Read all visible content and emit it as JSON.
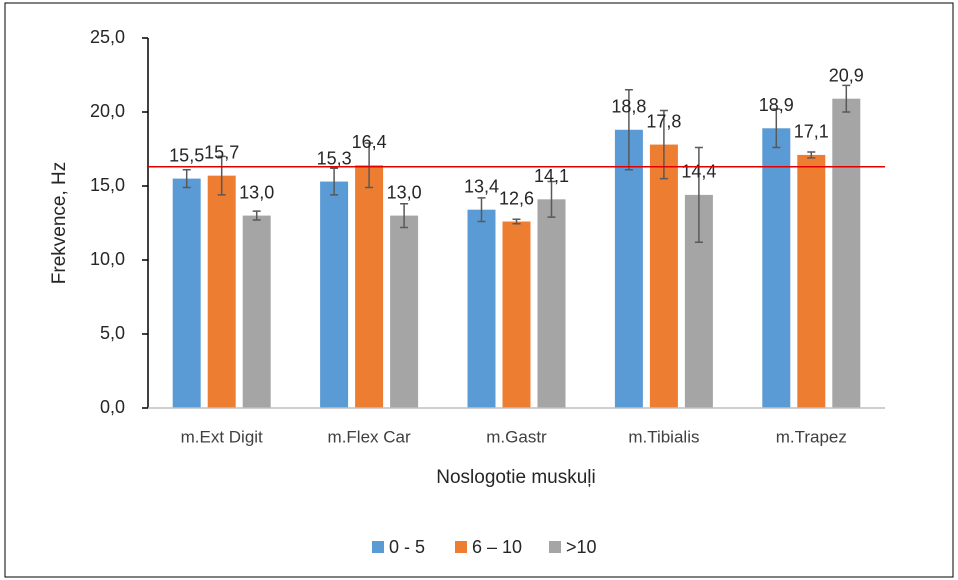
{
  "chart_data": {
    "type": "bar",
    "categories": [
      "m.Ext Digit",
      "m.Flex Car",
      "m.Gastr",
      "m.Tibialis",
      "m.Trapez"
    ],
    "series": [
      {
        "name": "0 - 5",
        "color": "#5b9bd5",
        "values": [
          15.5,
          15.3,
          13.4,
          18.8,
          18.9
        ],
        "value_labels": [
          "15,5",
          "15,3",
          "13,4",
          "18,8",
          "18,9"
        ],
        "errors": [
          0.6,
          0.9,
          0.8,
          2.7,
          1.3
        ]
      },
      {
        "name": "6 – 10",
        "color": "#ed7d31",
        "values": [
          15.7,
          16.4,
          12.6,
          17.8,
          17.1
        ],
        "value_labels": [
          "15,7",
          "16,4",
          "12,6",
          "17,8",
          "17,1"
        ],
        "errors": [
          1.3,
          1.5,
          0.15,
          2.3,
          0.2
        ]
      },
      {
        "name": ">10",
        "color": "#a5a5a5",
        "values": [
          13.0,
          13.0,
          14.1,
          14.4,
          20.9
        ],
        "value_labels": [
          "13,0",
          "13,0",
          "14,1",
          "14,4",
          "20,9"
        ],
        "errors": [
          0.3,
          0.8,
          1.2,
          3.2,
          0.9
        ]
      }
    ],
    "ylim": [
      0,
      25
    ],
    "yticks": [
      {
        "value": 0,
        "label": "0,0"
      },
      {
        "value": 5,
        "label": "5,0"
      },
      {
        "value": 10,
        "label": "10,0"
      },
      {
        "value": 15,
        "label": "15,0"
      },
      {
        "value": 20,
        "label": "20,0"
      },
      {
        "value": 25,
        "label": "25,0"
      }
    ],
    "y_label": "Frekvence, Hz",
    "x_label": "Noslogotie muskuļi",
    "reference_line": 16.3,
    "reference_color": "#e00000",
    "legend": "bottom"
  }
}
